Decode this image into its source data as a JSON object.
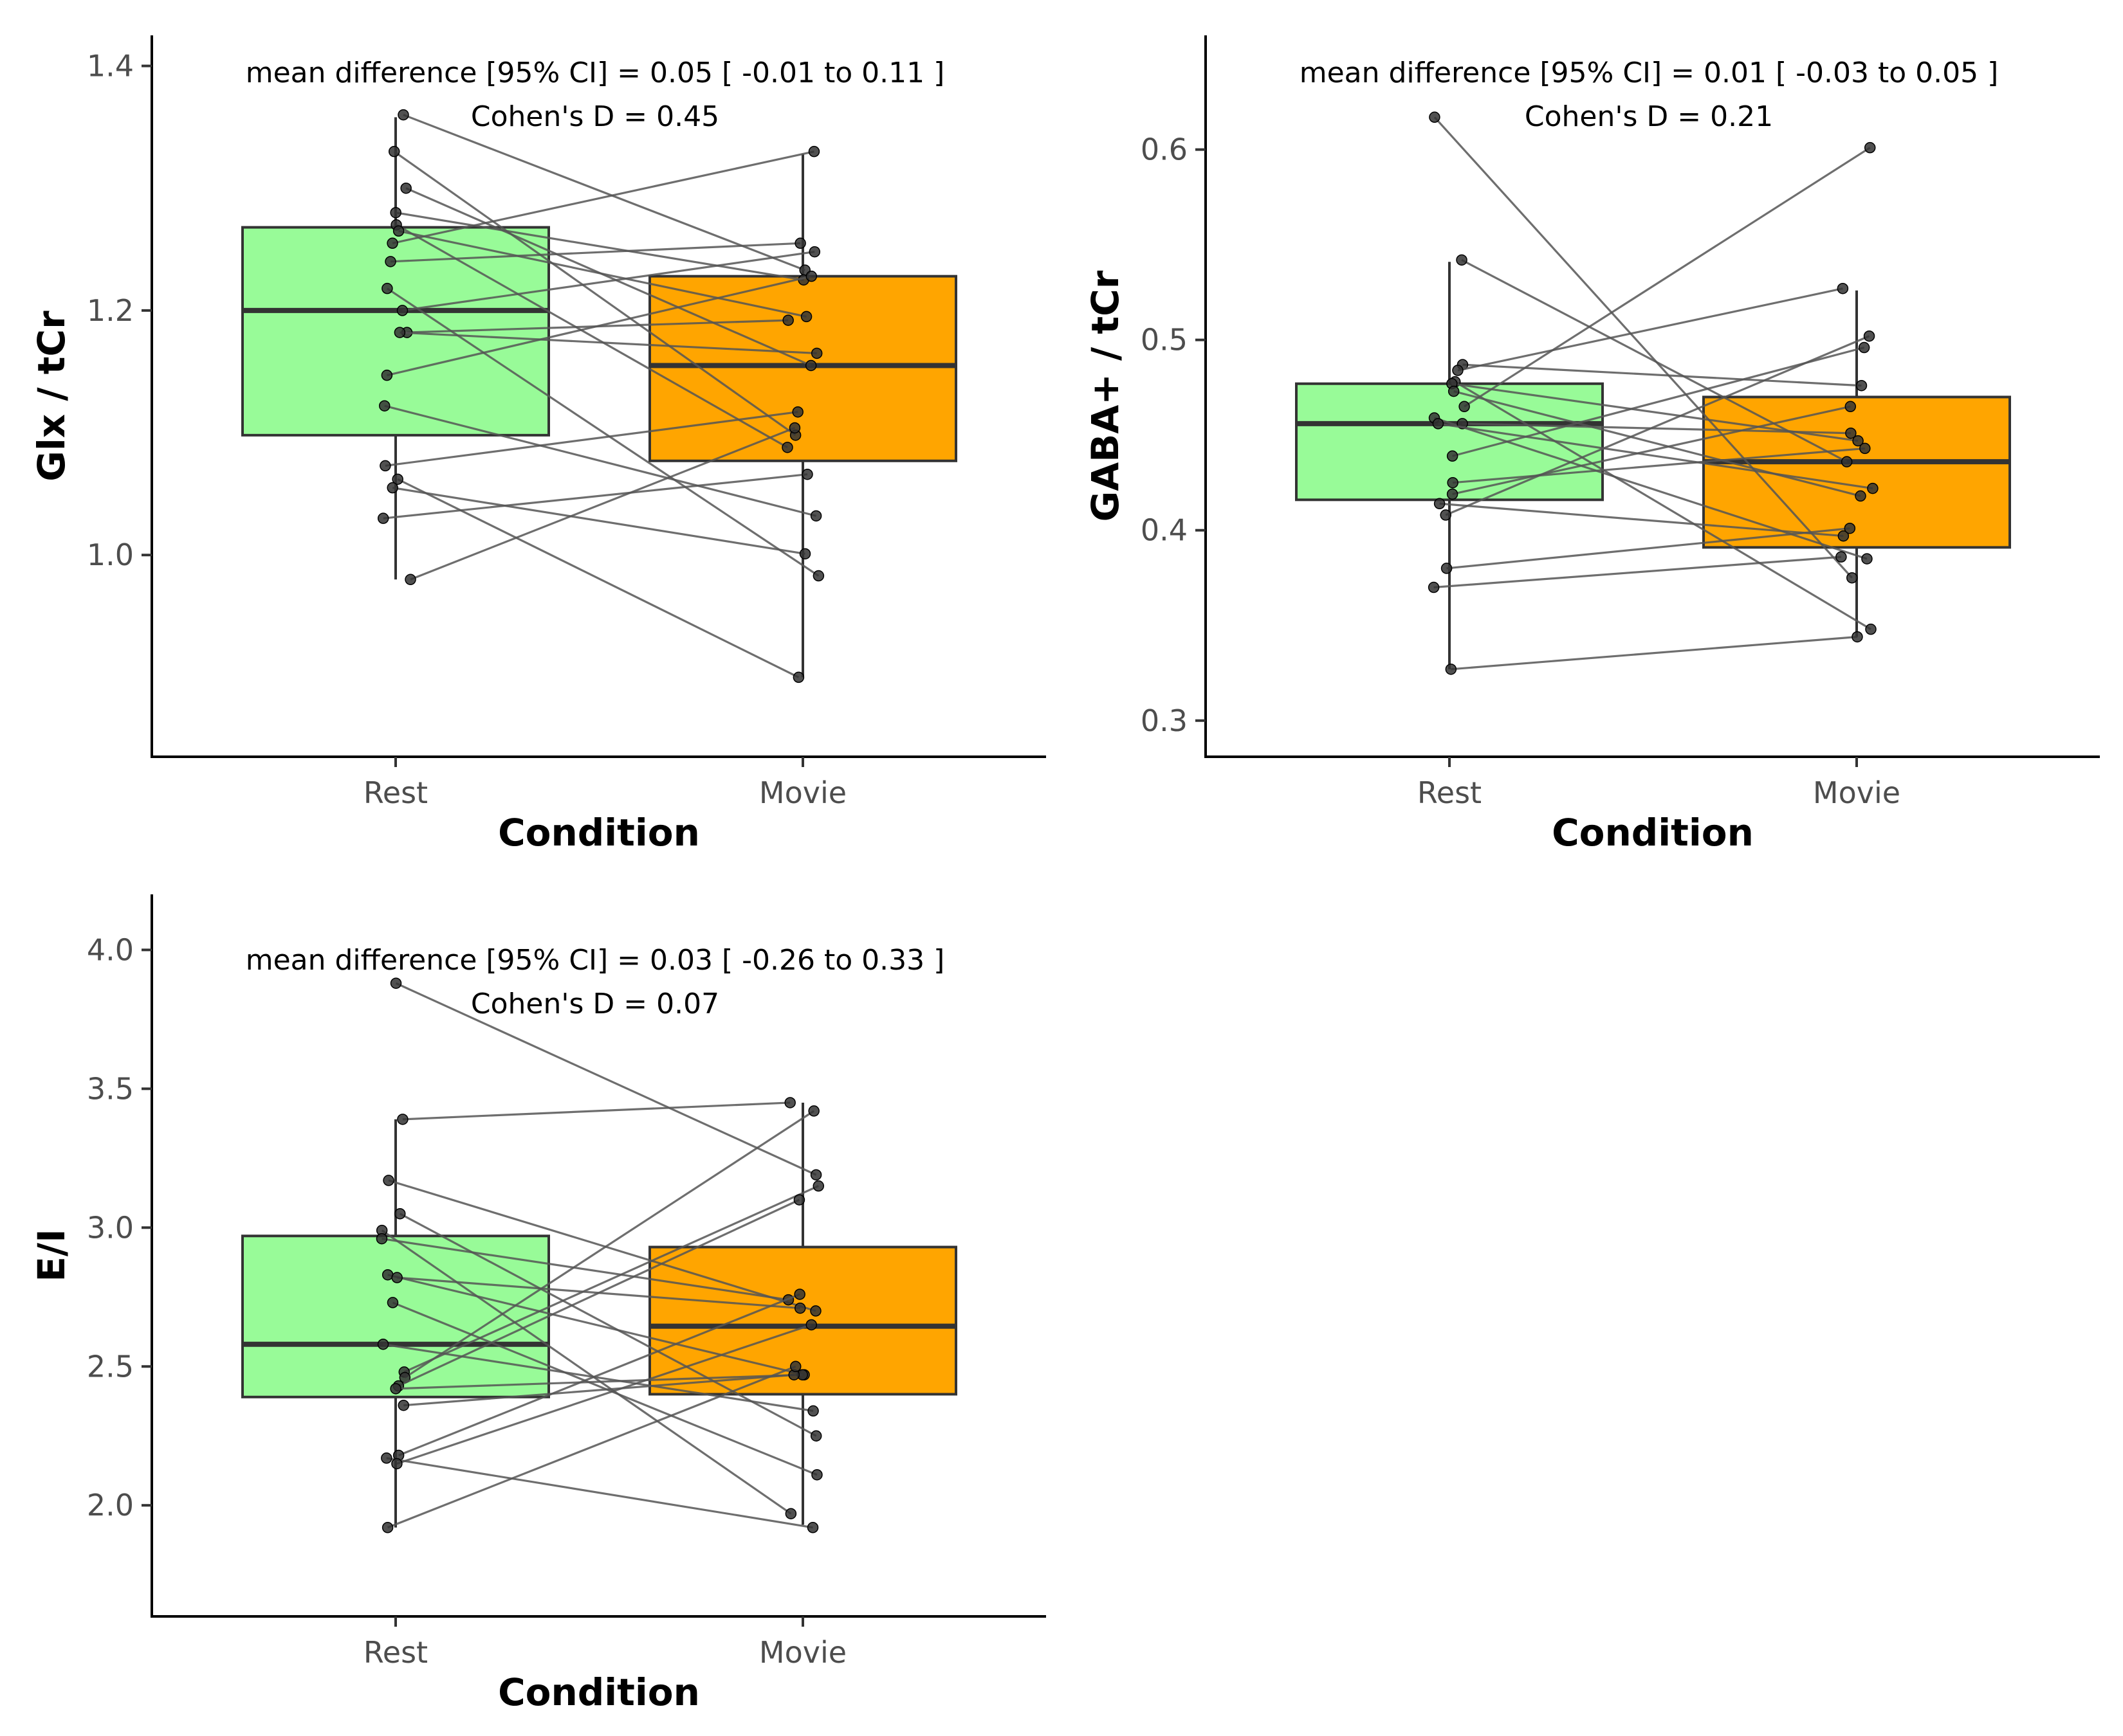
{
  "figure": {
    "background": "#ffffff"
  },
  "chart_data": [
    {
      "type": "box",
      "panel": "top-left",
      "title": "",
      "xlabel": "Condition",
      "ylabel": "Glx / tCr",
      "categories": [
        "Rest",
        "Movie"
      ],
      "ylim": [
        0.835,
        1.425
      ],
      "yticks": [
        1.0,
        1.2,
        1.4
      ],
      "ytick_labels": [
        "1.0",
        "1.2",
        "1.4"
      ],
      "grid": false,
      "colors": {
        "Rest": "#98FB98",
        "Movie": "#FFA500"
      },
      "annotation": {
        "line1": "mean difference [95% CI] =  0.05 [ -0.01  to  0.11 ]",
        "line2": "Cohen's D =  0.45"
      },
      "boxes": [
        {
          "category": "Rest",
          "min": 0.98,
          "q1": 1.098,
          "median": 1.2,
          "q3": 1.268,
          "max": 1.358
        },
        {
          "category": "Movie",
          "min": 0.9,
          "q1": 1.077,
          "median": 1.155,
          "q3": 1.228,
          "max": 1.328
        }
      ],
      "pairs": [
        {
          "rest": 1.36,
          "movie": 1.233
        },
        {
          "rest": 1.33,
          "movie": 1.098
        },
        {
          "rest": 1.3,
          "movie": 1.155
        },
        {
          "rest": 1.28,
          "movie": 1.225
        },
        {
          "rest": 1.27,
          "movie": 1.088
        },
        {
          "rest": 1.265,
          "movie": 1.195
        },
        {
          "rest": 1.255,
          "movie": 1.33
        },
        {
          "rest": 1.24,
          "movie": 1.255
        },
        {
          "rest": 1.218,
          "movie": 0.983
        },
        {
          "rest": 1.2,
          "movie": 1.248
        },
        {
          "rest": 1.182,
          "movie": 1.192
        },
        {
          "rest": 1.182,
          "movie": 1.165
        },
        {
          "rest": 1.147,
          "movie": 1.228
        },
        {
          "rest": 1.122,
          "movie": 1.032
        },
        {
          "rest": 1.073,
          "movie": 1.117
        },
        {
          "rest": 1.062,
          "movie": 0.9
        },
        {
          "rest": 1.055,
          "movie": 1.001
        },
        {
          "rest": 1.03,
          "movie": 1.066
        },
        {
          "rest": 0.98,
          "movie": 1.104
        }
      ]
    },
    {
      "type": "box",
      "panel": "top-right",
      "title": "",
      "xlabel": "Condition",
      "ylabel": "GABA+ / tCr",
      "categories": [
        "Rest",
        "Movie"
      ],
      "ylim": [
        0.281,
        0.66
      ],
      "yticks": [
        0.3,
        0.4,
        0.5,
        0.6
      ],
      "ytick_labels": [
        "0.3",
        "0.4",
        "0.5",
        "0.6"
      ],
      "grid": false,
      "colors": {
        "Rest": "#98FB98",
        "Movie": "#FFA500"
      },
      "annotation": {
        "line1": "mean difference [95% CI] =  0.01 [ -0.03  to  0.05 ]",
        "line2": "Cohen's D =  0.21"
      },
      "boxes": [
        {
          "category": "Rest",
          "min": 0.327,
          "q1": 0.416,
          "median": 0.456,
          "q3": 0.477,
          "max": 0.541
        },
        {
          "category": "Movie",
          "min": 0.344,
          "q1": 0.391,
          "median": 0.436,
          "q3": 0.47,
          "max": 0.526
        }
      ],
      "pairs": [
        {
          "rest": 0.617,
          "movie": 0.375
        },
        {
          "rest": 0.542,
          "movie": 0.436
        },
        {
          "rest": 0.487,
          "movie": 0.476
        },
        {
          "rest": 0.484,
          "movie": 0.527
        },
        {
          "rest": 0.478,
          "movie": 0.348
        },
        {
          "rest": 0.477,
          "movie": 0.447
        },
        {
          "rest": 0.473,
          "movie": 0.418
        },
        {
          "rest": 0.465,
          "movie": 0.601
        },
        {
          "rest": 0.459,
          "movie": 0.385
        },
        {
          "rest": 0.456,
          "movie": 0.451
        },
        {
          "rest": 0.456,
          "movie": 0.422
        },
        {
          "rest": 0.439,
          "movie": 0.496
        },
        {
          "rest": 0.425,
          "movie": 0.443
        },
        {
          "rest": 0.419,
          "movie": 0.465
        },
        {
          "rest": 0.414,
          "movie": 0.397
        },
        {
          "rest": 0.408,
          "movie": 0.502
        },
        {
          "rest": 0.38,
          "movie": 0.401
        },
        {
          "rest": 0.37,
          "movie": 0.386
        },
        {
          "rest": 0.327,
          "movie": 0.344
        }
      ]
    },
    {
      "type": "box",
      "panel": "bottom-left",
      "title": "",
      "xlabel": "Condition",
      "ylabel": "E/I",
      "categories": [
        "Rest",
        "Movie"
      ],
      "ylim": [
        1.6,
        4.2
      ],
      "yticks": [
        2.0,
        2.5,
        3.0,
        3.5,
        4.0
      ],
      "ytick_labels": [
        "2.0",
        "2.5",
        "3.0",
        "3.5",
        "4.0"
      ],
      "grid": false,
      "colors": {
        "Rest": "#98FB98",
        "Movie": "#FFA500"
      },
      "annotation": {
        "line1": "mean difference [95% CI] =  0.03 [ -0.26  to  0.33 ]",
        "line2": "Cohen's D =  0.07"
      },
      "boxes": [
        {
          "category": "Rest",
          "min": 1.92,
          "q1": 2.39,
          "median": 2.58,
          "q3": 2.97,
          "max": 3.39
        },
        {
          "category": "Movie",
          "min": 1.93,
          "q1": 2.4,
          "median": 2.645,
          "q3": 2.93,
          "max": 3.45
        }
      ],
      "pairs": [
        {
          "rest": 3.88,
          "movie": 3.19
        },
        {
          "rest": 3.39,
          "movie": 3.45
        },
        {
          "rest": 3.17,
          "movie": 2.7
        },
        {
          "rest": 3.05,
          "movie": 2.25
        },
        {
          "rest": 2.99,
          "movie": 1.97
        },
        {
          "rest": 2.96,
          "movie": 2.74
        },
        {
          "rest": 2.83,
          "movie": 2.47
        },
        {
          "rest": 2.82,
          "movie": 2.71
        },
        {
          "rest": 2.73,
          "movie": 2.11
        },
        {
          "rest": 2.58,
          "movie": 2.34
        },
        {
          "rest": 2.48,
          "movie": 3.15
        },
        {
          "rest": 2.46,
          "movie": 3.42
        },
        {
          "rest": 2.43,
          "movie": 3.1
        },
        {
          "rest": 2.42,
          "movie": 2.47
        },
        {
          "rest": 2.36,
          "movie": 2.47
        },
        {
          "rest": 2.18,
          "movie": 2.76
        },
        {
          "rest": 2.17,
          "movie": 1.92
        },
        {
          "rest": 2.15,
          "movie": 2.65
        },
        {
          "rest": 1.92,
          "movie": 2.5
        }
      ]
    }
  ]
}
